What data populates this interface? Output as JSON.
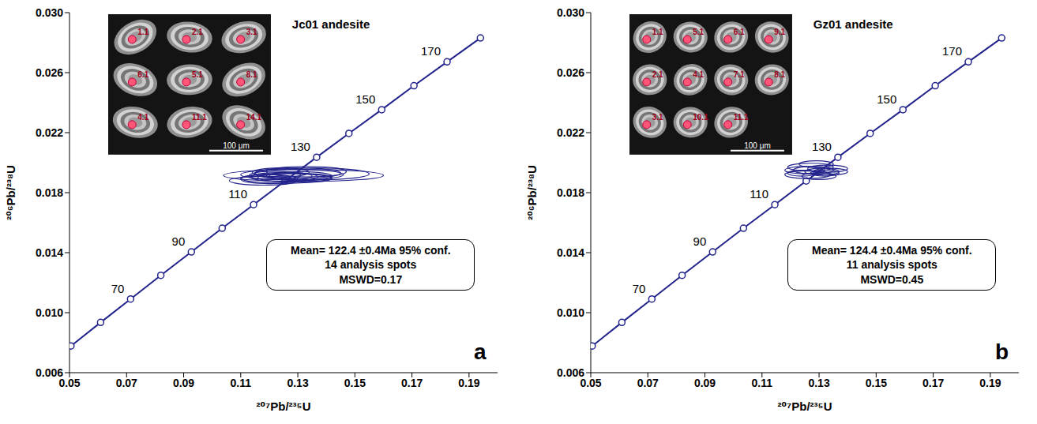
{
  "chart_data": [
    {
      "type": "scatter",
      "title": "Jc01 andesite",
      "panel": "a",
      "x_label": "²⁰⁷Pb/²³⁵U",
      "y_label": "²⁰⁶Pb/²³⁸U",
      "xlim": [
        0.05,
        0.2
      ],
      "xticks": [
        0.05,
        0.07,
        0.09,
        0.11,
        0.13,
        0.15,
        0.17,
        0.19
      ],
      "ylim": [
        0.006,
        0.03
      ],
      "yticks": [
        0.006,
        {
          "value": 0.01,
          "label": "0.010"
        },
        0.014,
        0.018,
        0.022,
        0.026,
        {
          "value": 0.03,
          "label": "0.030"
        }
      ],
      "color": "#23238c",
      "concordia": {
        "x": [
          0.0505,
          0.0609,
          0.0714,
          0.082,
          0.0927,
          0.1035,
          0.1145,
          0.1255,
          0.1366,
          0.1479,
          0.1594,
          0.1707,
          0.1823,
          0.194
        ],
        "y": [
          0.00778,
          0.00935,
          0.01091,
          0.01249,
          0.01405,
          0.01563,
          0.0172,
          0.01878,
          0.02036,
          0.02195,
          0.02353,
          0.02513,
          0.02672,
          0.02831
        ],
        "point_labels": [
          null,
          null,
          70,
          null,
          90,
          null,
          110,
          null,
          130,
          null,
          150,
          null,
          170,
          null
        ]
      },
      "spots": {
        "x": [
          0.128,
          0.125,
          0.132,
          0.12,
          0.13,
          0.118,
          0.135,
          0.127,
          0.124,
          0.129,
          0.122,
          0.133,
          0.126,
          0.131
        ],
        "y": [
          0.0192,
          0.01905,
          0.01915,
          0.0189,
          0.0193,
          0.0188,
          0.01925,
          0.0191,
          0.01935,
          0.019,
          0.01915,
          0.0194,
          0.01895,
          0.0191
        ],
        "x_err": [
          0.018,
          0.012,
          0.028,
          0.01,
          0.015,
          0.012,
          0.02,
          0.008,
          0.01,
          0.013,
          0.009,
          0.014,
          0.016,
          0.011
        ],
        "y_err": [
          0.00035,
          0.0003,
          0.0004,
          0.0003,
          0.00035,
          0.0003,
          0.0004,
          0.00025,
          0.0003,
          0.0003,
          0.00028,
          0.00035,
          0.00032,
          0.0003
        ]
      },
      "annotation": [
        "Mean= 122.4 ±0.4Ma 95% conf.",
        "14 analysis spots",
        "MSWD=0.17"
      ],
      "inset": {
        "scale_bar": "100 μm",
        "spot_labels": [
          "1.1",
          "2.1",
          "3.1",
          "6.1",
          "5.1",
          "8.1",
          "4.1",
          "11.1",
          "14.1"
        ]
      }
    },
    {
      "type": "scatter",
      "title": "Gz01 andesite",
      "panel": "b",
      "x_label": "²⁰⁷Pb/²³⁵U",
      "y_label": "²⁰⁶Pb/²³⁸U",
      "xlim": [
        0.05,
        0.2
      ],
      "xticks": [
        0.05,
        0.07,
        0.09,
        0.11,
        0.13,
        0.15,
        0.17,
        0.19
      ],
      "ylim": [
        0.006,
        0.03
      ],
      "yticks": [
        0.006,
        {
          "value": 0.01,
          "label": "0.010"
        },
        0.014,
        0.018,
        0.022,
        0.026,
        {
          "value": 0.03,
          "label": "0.030"
        }
      ],
      "color": "#23238c",
      "concordia": {
        "x": [
          0.0505,
          0.0609,
          0.0714,
          0.082,
          0.0927,
          0.1035,
          0.1145,
          0.1255,
          0.1366,
          0.1479,
          0.1594,
          0.1707,
          0.1823,
          0.194
        ],
        "y": [
          0.00778,
          0.00935,
          0.01091,
          0.01249,
          0.01405,
          0.01563,
          0.0172,
          0.01878,
          0.02036,
          0.02195,
          0.02353,
          0.02513,
          0.02672,
          0.02831
        ],
        "point_labels": [
          null,
          null,
          70,
          null,
          90,
          null,
          110,
          null,
          130,
          null,
          150,
          null,
          170,
          null
        ]
      },
      "spots": {
        "x": [
          0.128,
          0.131,
          0.126,
          0.133,
          0.129,
          0.124,
          0.13,
          0.127,
          0.132,
          0.125,
          0.134
        ],
        "y": [
          0.0195,
          0.0194,
          0.0192,
          0.0196,
          0.0199,
          0.0193,
          0.0191,
          0.0197,
          0.0193,
          0.0195,
          0.0194
        ],
        "x_err": [
          0.007,
          0.006,
          0.008,
          0.007,
          0.006,
          0.005,
          0.006,
          0.008,
          0.005,
          0.007,
          0.006
        ],
        "y_err": [
          0.00025,
          0.00022,
          0.00026,
          0.00024,
          0.00022,
          0.0002,
          0.00022,
          0.00026,
          0.0002,
          0.00024,
          0.00022
        ]
      },
      "annotation": [
        "Mean= 124.4 ±0.4Ma 95% conf.",
        "11 analysis spots",
        "MSWD=0.45"
      ],
      "inset": {
        "scale_bar": "100 μm",
        "spot_labels": [
          "1.1",
          "5.1",
          "6.1",
          "9.1",
          "2.1",
          "4.1",
          "7.1",
          "8.1",
          "3.1",
          "10.1",
          "11.1"
        ]
      }
    }
  ]
}
